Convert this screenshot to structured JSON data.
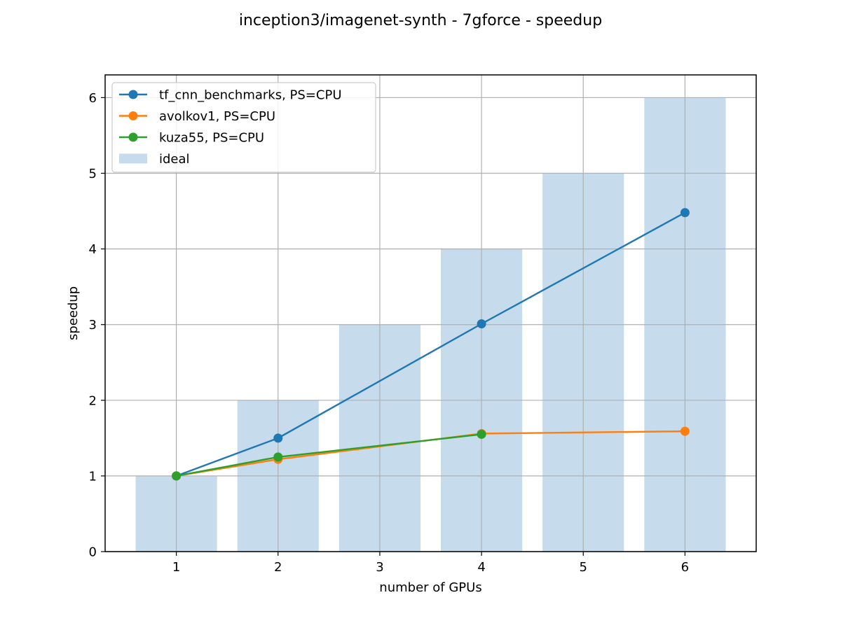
{
  "chart_data": {
    "type": "bar+line",
    "title": "inception3/imagenet-synth - 7gforce - speedup",
    "xlabel": "number of GPUs",
    "ylabel": "speedup",
    "xlim": [
      0.3,
      6.7
    ],
    "ylim": [
      0,
      6.3
    ],
    "grid": true,
    "legend_position": "top-left",
    "x_ticks": [
      1,
      2,
      3,
      4,
      5,
      6
    ],
    "y_ticks": [
      0,
      1,
      2,
      3,
      4,
      5,
      6
    ],
    "bars": {
      "name": "ideal",
      "color": "#c6dbec",
      "x": [
        1,
        2,
        3,
        4,
        5,
        6
      ],
      "values": [
        1,
        2,
        3,
        4,
        5,
        6
      ]
    },
    "series": [
      {
        "name": "tf_cnn_benchmarks, PS=CPU",
        "color": "#1f77b4",
        "x": [
          1,
          2,
          4,
          6
        ],
        "values": [
          1.0,
          1.5,
          3.01,
          4.48
        ]
      },
      {
        "name": "avolkov1, PS=CPU",
        "color": "#ff7f0e",
        "x": [
          1,
          2,
          4,
          6
        ],
        "values": [
          1.0,
          1.22,
          1.56,
          1.59
        ]
      },
      {
        "name": "kuza55, PS=CPU",
        "color": "#2ca02c",
        "x": [
          1,
          2,
          4
        ],
        "values": [
          1.0,
          1.25,
          1.55
        ]
      }
    ]
  }
}
